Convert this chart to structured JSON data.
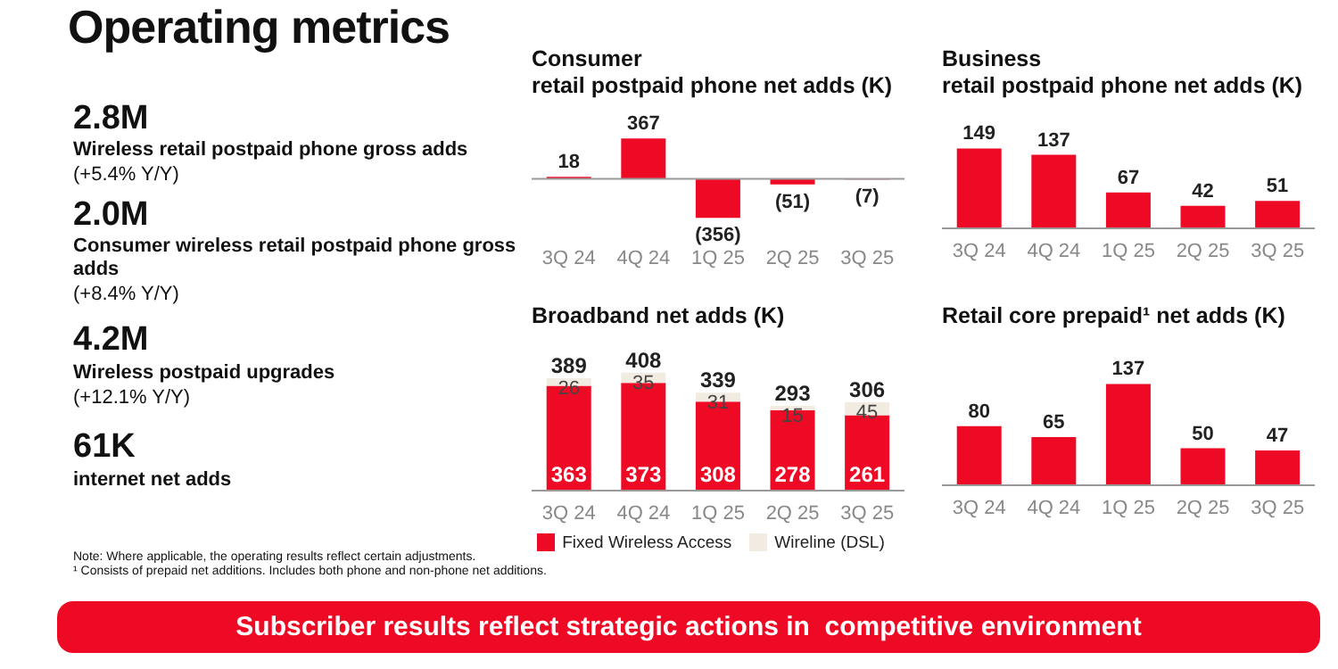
{
  "chart_data": [
    {
      "type": "other",
      "title": "Operating metrics",
      "annotations": [
        "2.8M",
        "Wireless retail postpaid phone gross adds",
        "(+5.4% Y/Y)",
        "2.0M",
        "Consumer wireless retail postpaid phone gross adds",
        "(+8.4% Y/Y)",
        "4.2M",
        "Wireless postpaid upgrades",
        "(+12.1% Y/Y)",
        "61K",
        "internet net adds",
        "Note: Where applicable, the operating results reflect certain adjustments.",
        "¹ Consists of prepaid net additions. Includes both phone and non-phone net additions.",
        "Subscriber results reflect strategic actions in  competitive environment"
      ]
    },
    {
      "type": "bar",
      "title": "Consumer\nretail postpaid phone net adds (K)",
      "categories": [
        "3Q 24",
        "4Q 24",
        "1Q 25",
        "2Q 25",
        "3Q 25"
      ],
      "values": [
        18,
        367,
        -356,
        -51,
        -7
      ],
      "value_labels": [
        "18",
        "367",
        "(356)",
        "(51)",
        "(7)"
      ],
      "color": "#ee0a24"
    },
    {
      "type": "bar",
      "title": "Business\nretail postpaid phone net adds (K)",
      "categories": [
        "3Q 24",
        "4Q 24",
        "1Q 25",
        "2Q 25",
        "3Q 25"
      ],
      "values": [
        149,
        137,
        67,
        42,
        51
      ],
      "data_labels": true,
      "color": "#ee0a24"
    },
    {
      "type": "bar",
      "title": "Broadband net adds (K)",
      "categories": [
        "3Q 24",
        "4Q 24",
        "1Q 25",
        "2Q 25",
        "3Q 25"
      ],
      "stacked": true,
      "data_labels": true,
      "legend": "bottom",
      "totals": [
        "389",
        "408",
        "339",
        "293",
        "306"
      ],
      "series": [
        {
          "name": "Fixed Wireless Access",
          "color": "#ee0a24",
          "values": [
            363,
            373,
            308,
            278,
            261
          ]
        },
        {
          "name": "Wireline (DSL)",
          "color": "#f2ebe1",
          "values": [
            26,
            35,
            31,
            15,
            45
          ]
        }
      ]
    },
    {
      "type": "bar",
      "title": "Retail core prepaid¹ net adds (K)",
      "categories": [
        "3Q 24",
        "4Q 24",
        "1Q 25",
        "2Q 25",
        "3Q 25"
      ],
      "values": [
        80,
        65,
        137,
        50,
        47
      ],
      "data_labels": true,
      "color": "#ee0a24"
    }
  ]
}
